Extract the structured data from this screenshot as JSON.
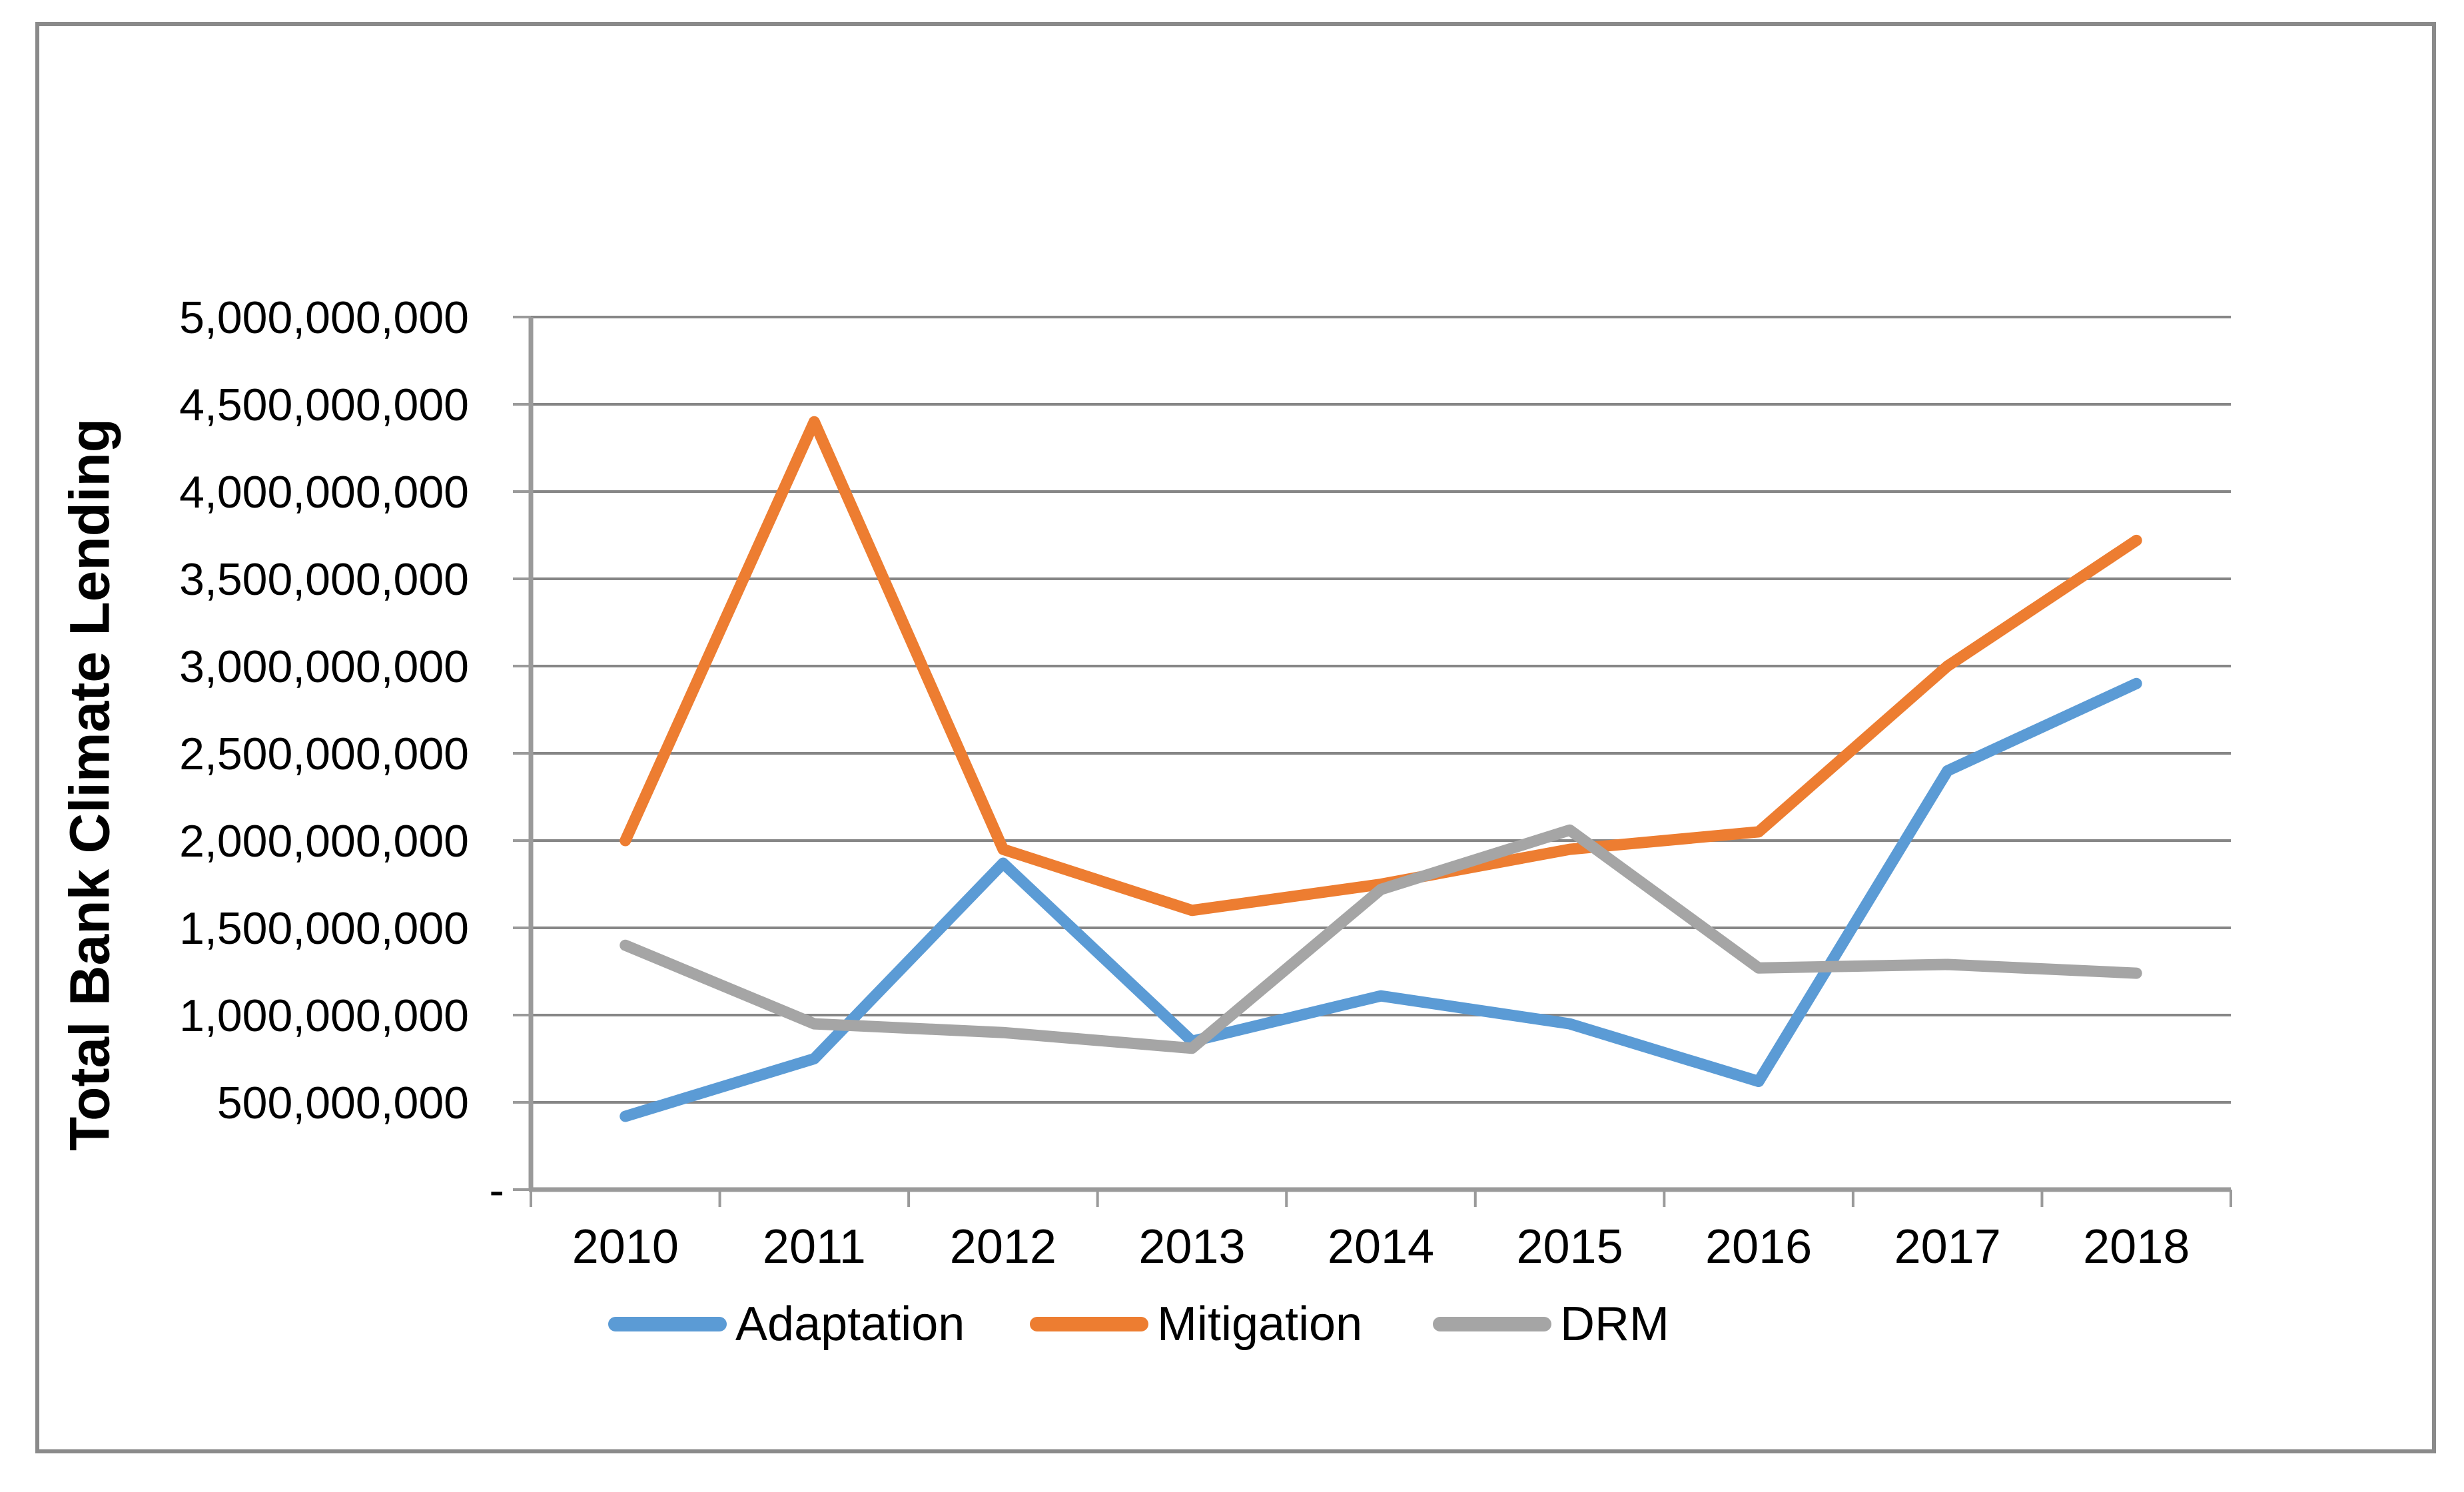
{
  "y_axis": {
    "title": "Total Bank Climate Lending",
    "tick_labels": [
      "-",
      "500,000,000",
      "1,000,000,000",
      "1,500,000,000",
      "2,000,000,000",
      "2,500,000,000",
      "3,000,000,000",
      "3,500,000,000",
      "4,000,000,000",
      "4,500,000,000",
      "5,000,000,000"
    ]
  },
  "x_axis": {
    "tick_labels": [
      "2010",
      "2011",
      "2012",
      "2013",
      "2014",
      "2015",
      "2016",
      "2017",
      "2018"
    ]
  },
  "colors": {
    "adaptation": "#5B9BD5",
    "mitigation": "#ED7D31",
    "drm": "#A5A5A5",
    "gridline": "#868686",
    "axis": "#9A9A9A",
    "frame_border": "#8A8A8A"
  },
  "chart_data": {
    "type": "line",
    "title": "",
    "categories": [
      "2010",
      "2011",
      "2012",
      "2013",
      "2014",
      "2015",
      "2016",
      "2017",
      "2018"
    ],
    "series": [
      {
        "name": "Adaptation",
        "color": "#5B9BD5",
        "values": [
          420000000,
          750000000,
          1870000000,
          850000000,
          1110000000,
          950000000,
          620000000,
          2400000000,
          2900000000
        ]
      },
      {
        "name": "Mitigation",
        "color": "#ED7D31",
        "values": [
          2000000000,
          4400000000,
          1950000000,
          1600000000,
          1750000000,
          1950000000,
          2050000000,
          3000000000,
          3720000000
        ]
      },
      {
        "name": "DRM",
        "color": "#A5A5A5",
        "values": [
          1400000000,
          950000000,
          900000000,
          810000000,
          1720000000,
          2060000000,
          1270000000,
          1290000000,
          1240000000
        ]
      }
    ],
    "xlabel": "",
    "ylabel": "Total Bank Climate Lending",
    "ylim": [
      0,
      5000000000
    ],
    "ytick_step": 500000000,
    "grid": true,
    "legend_position": "bottom"
  }
}
